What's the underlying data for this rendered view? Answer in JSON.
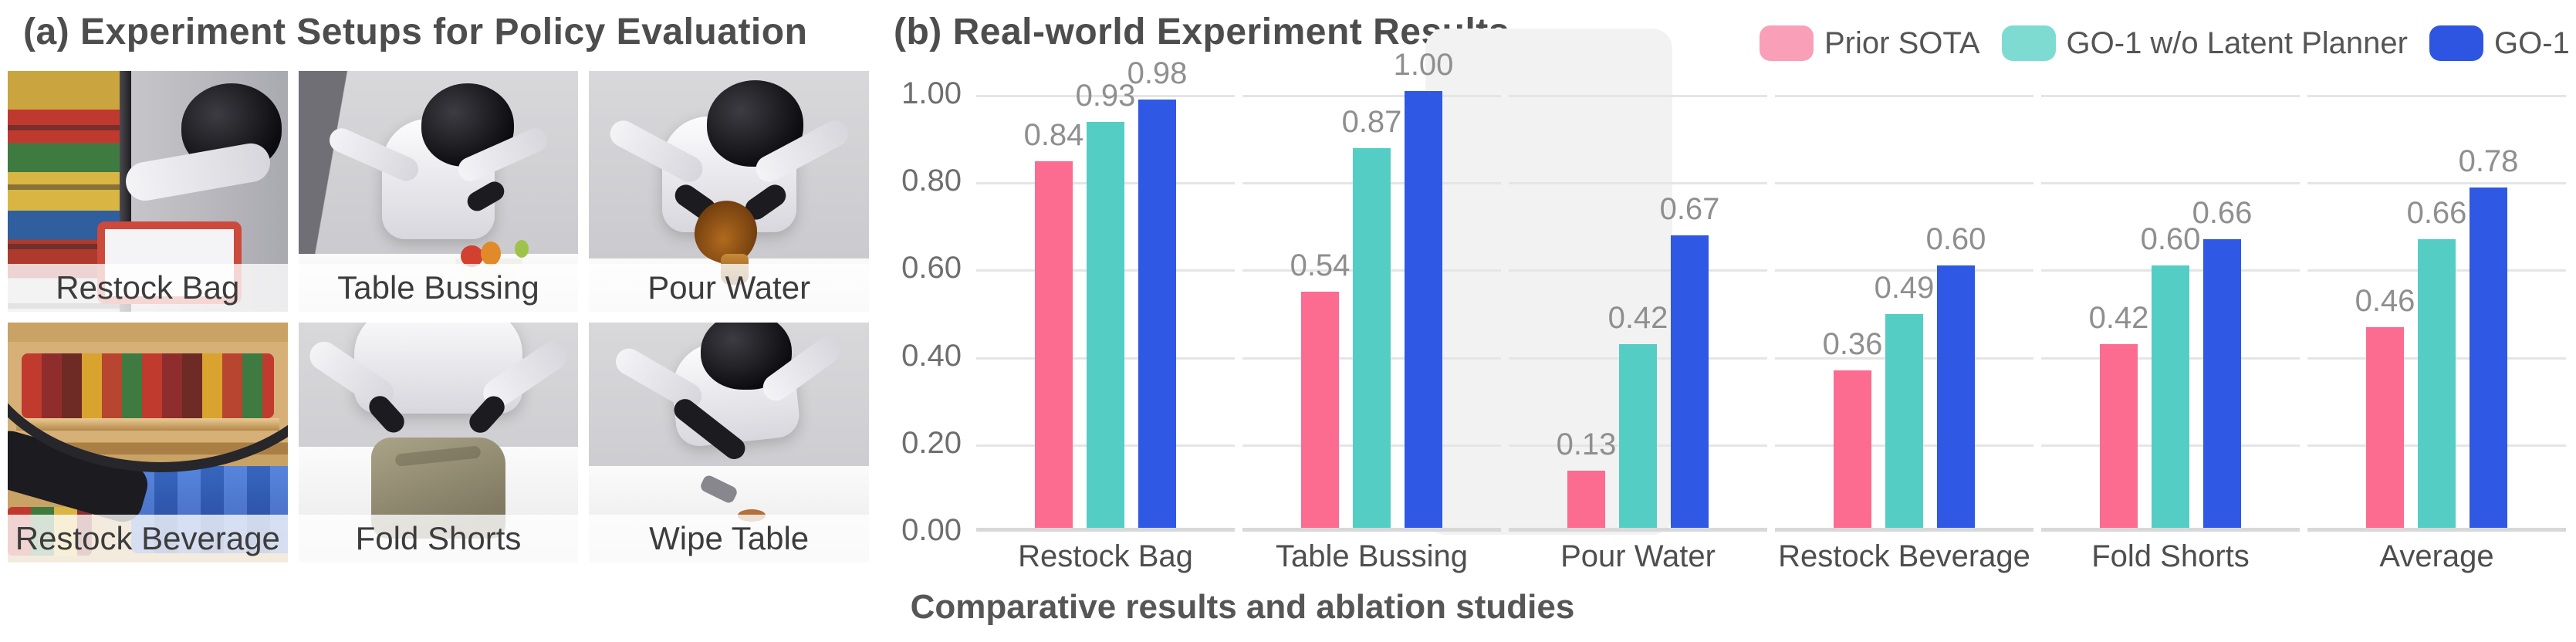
{
  "figure": {
    "panel_a_title": "(a) Experiment Setups for Policy Evaluation",
    "panel_b_title": "(b) Real-world Experiment Results",
    "caption": "Comparative results and ablation studies"
  },
  "setups": {
    "items": [
      {
        "label": "Restock Bag"
      },
      {
        "label": "Table Bussing"
      },
      {
        "label": "Pour Water"
      },
      {
        "label": "Restock Beverage"
      },
      {
        "label": "Fold Shorts"
      },
      {
        "label": "Wipe Table"
      }
    ]
  },
  "chart_data": {
    "type": "bar",
    "title": "(b) Real-world Experiment Results",
    "categories": [
      "Restock Bag",
      "Table Bussing",
      "Pour Water",
      "Restock Beverage",
      "Fold Shorts",
      "Average"
    ],
    "series": [
      {
        "name": "Prior SOTA",
        "color": "#FB6C90",
        "legend_color": "#FA9FB8",
        "values": [
          0.84,
          0.54,
          0.13,
          0.36,
          0.42,
          0.46
        ]
      },
      {
        "name": "GO-1 w/o Latent Planner",
        "color": "#54CEC4",
        "legend_color": "#7DDBD2",
        "values": [
          0.93,
          0.87,
          0.42,
          0.49,
          0.6,
          0.66
        ]
      },
      {
        "name": "GO-1",
        "color": "#2F58E4",
        "legend_color": "#2E55E2",
        "values": [
          0.98,
          1.0,
          0.67,
          0.6,
          0.66,
          0.78
        ]
      }
    ],
    "yticks": [
      "1.00",
      "0.80",
      "0.60",
      "0.40",
      "0.20",
      "0.00"
    ],
    "ylim": [
      0,
      1.0
    ],
    "grid": true,
    "legend_position": "top-right",
    "highlight_category": "Average",
    "value_label_format": "0.00",
    "xlabel": "",
    "ylabel": ""
  }
}
